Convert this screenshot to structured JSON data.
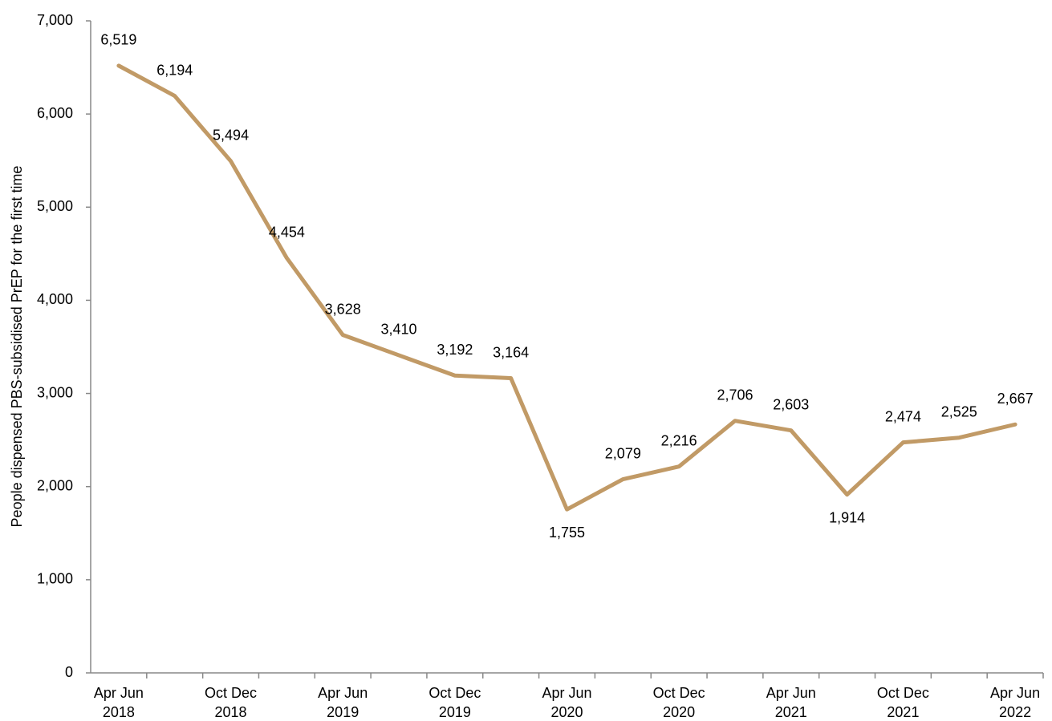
{
  "chart_data": {
    "type": "line",
    "y_label": "People dispensed PBS-subsidised PrEP for the first time",
    "categories": [
      "Apr Jun\n2018",
      null,
      "Oct Dec\n2018",
      null,
      "Apr Jun\n2019",
      null,
      "Oct Dec\n2019",
      null,
      "Apr Jun\n2020",
      null,
      "Oct Dec\n2020",
      null,
      "Apr Jun\n2021",
      null,
      "Oct Dec\n2021",
      null,
      "Apr Jun\n2022"
    ],
    "series": [
      {
        "name": "PrEP",
        "color": "#c19a66",
        "values": [
          6519,
          6194,
          5494,
          4454,
          3628,
          3410,
          3192,
          3164,
          1755,
          2079,
          2216,
          2706,
          2603,
          1914,
          2474,
          2525,
          2667
        ],
        "value_labels": [
          "6,519",
          "6,194",
          "5,494",
          "4,454",
          "3,628",
          "3,410",
          "3,192",
          "3,164",
          "1,755",
          "2,079",
          "2,216",
          "2,706",
          "2,603",
          "1,914",
          "2,474",
          "2,525",
          "2,667"
        ]
      }
    ],
    "ylim": [
      0,
      7000
    ],
    "yticks": [
      0,
      {
        "value": 1000,
        "label": "1,000"
      },
      {
        "value": 2000,
        "label": "2,000"
      },
      {
        "value": 3000,
        "label": "3,000"
      },
      {
        "value": 4000,
        "label": "4,000"
      },
      {
        "value": 5000,
        "label": "5,000"
      },
      {
        "value": 6000,
        "label": "6,000"
      },
      {
        "value": 7000,
        "label": "7,000"
      }
    ],
    "grid": false
  }
}
